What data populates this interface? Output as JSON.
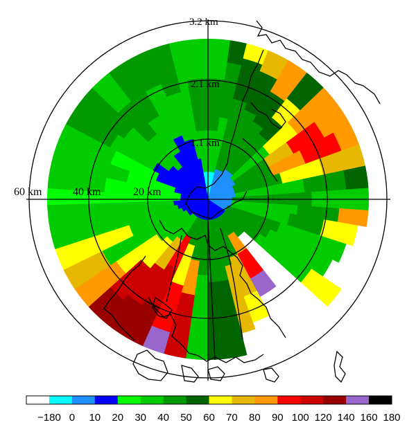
{
  "ring_labels": [
    "3.2 km",
    "2.1 km",
    "1.1 km"
  ],
  "axis_labels": [
    "60 km",
    "40 km",
    "20 km"
  ],
  "colorbar": {
    "ticks": [
      "−180",
      "0",
      "10",
      "20",
      "30",
      "40",
      "50",
      "60",
      "70",
      "80",
      "90",
      "100",
      "120",
      "140",
      "160",
      "180"
    ],
    "colors": [
      "#ffffff",
      "#00ffff",
      "#1e90ff",
      "#0000ff",
      "#00ff00",
      "#00cc00",
      "#009900",
      "#006400",
      "#ffff00",
      "#e6b800",
      "#ff9900",
      "#ff0000",
      "#cc0000",
      "#990000",
      "#9966cc",
      "#000000"
    ]
  },
  "map": {
    "type": "radar-ppi",
    "max_range_km": 60,
    "range_rings_km": [
      20,
      40,
      60
    ]
  }
}
